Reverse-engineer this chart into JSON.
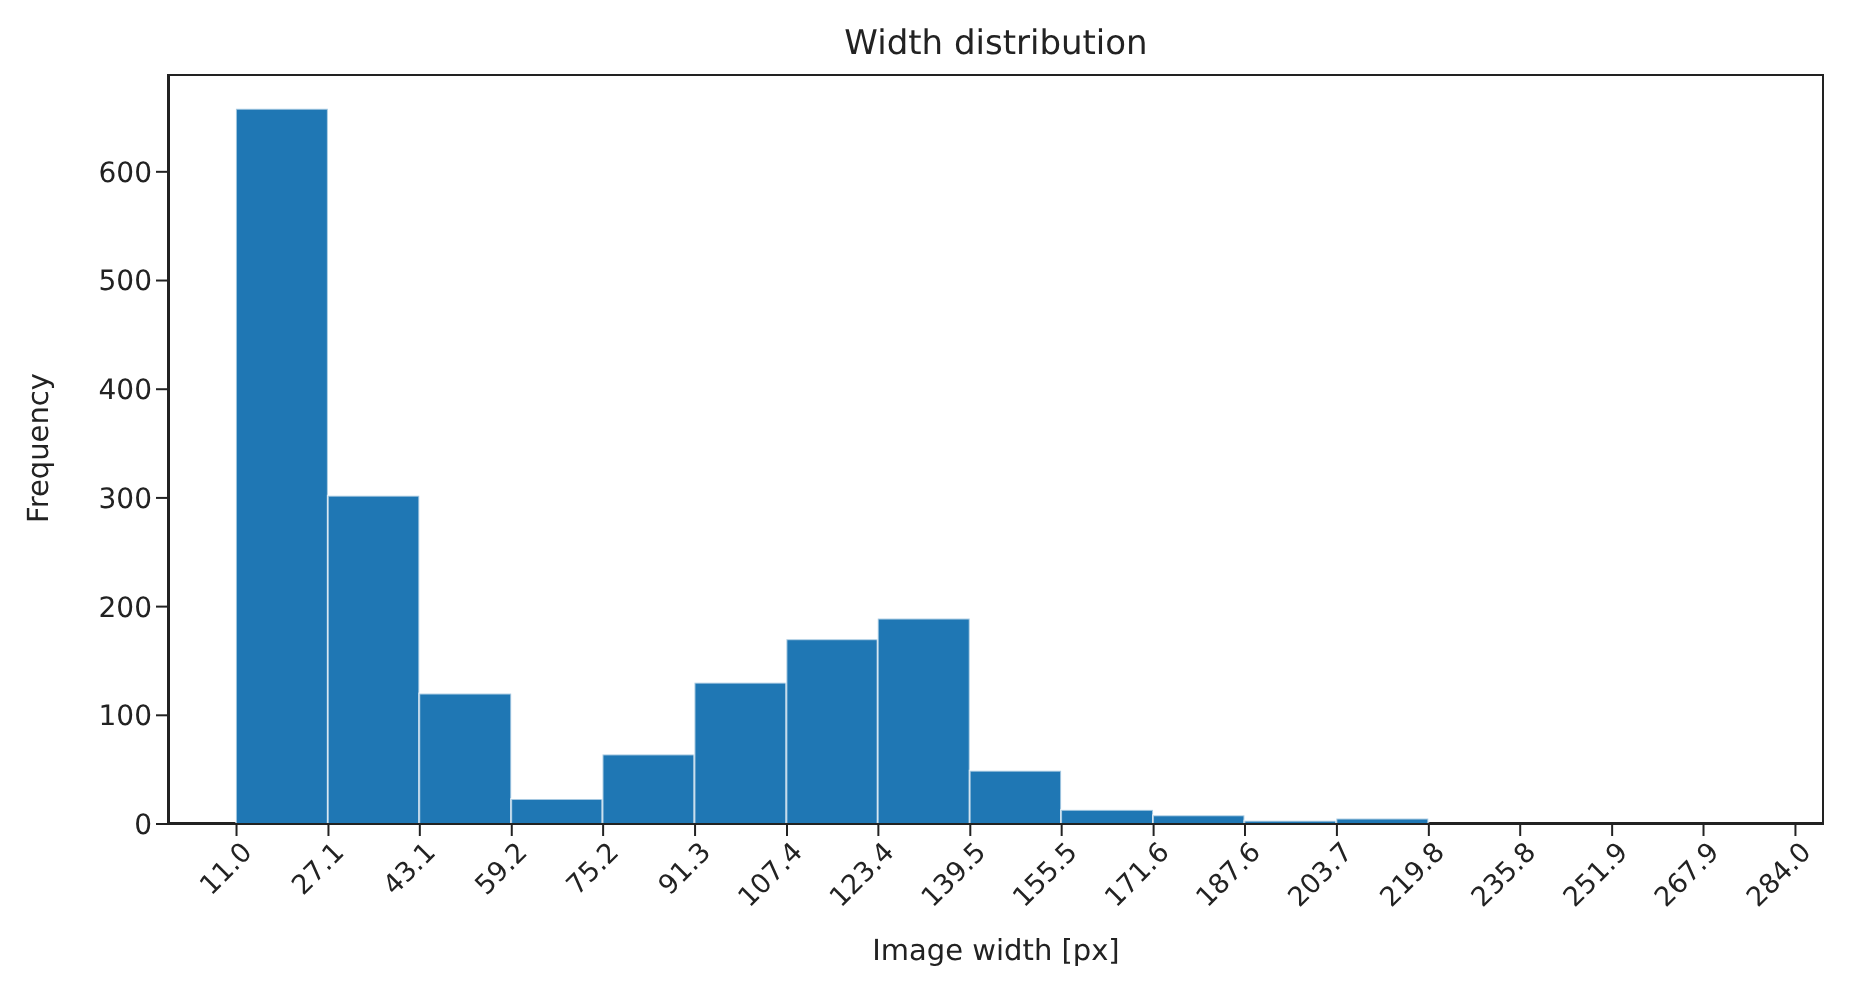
{
  "chart_data": {
    "type": "histogram",
    "title": "Width distribution",
    "xlabel": "Image width [px]",
    "ylabel": "Frequency",
    "bins": [
      11.0,
      27.1,
      43.1,
      59.2,
      75.2,
      91.3,
      107.4,
      123.4,
      139.5,
      155.5,
      171.6,
      187.6,
      203.7,
      219.8
    ],
    "values": [
      658,
      302,
      120,
      23,
      64,
      130,
      170,
      189,
      49,
      13,
      8,
      3,
      5
    ],
    "color": "#1f77b4",
    "xlim": [
      -1,
      289
    ],
    "ylim": [
      0,
      690
    ],
    "xticks": [
      {
        "value": 11,
        "label": "11.0"
      },
      27.1,
      43.1,
      59.2,
      75.2,
      91.3,
      107.4,
      123.4,
      139.5,
      155.5,
      171.6,
      187.6,
      203.7,
      219.8,
      235.8,
      251.9,
      267.9,
      {
        "value": 284,
        "label": "284.0"
      }
    ],
    "yticks": [
      0,
      100,
      200,
      300,
      400,
      500,
      600
    ],
    "grid": false
  }
}
